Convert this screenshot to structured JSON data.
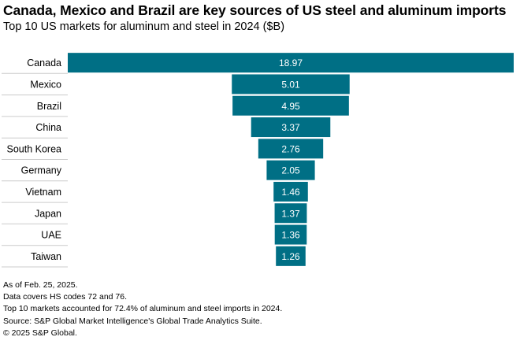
{
  "title": "Canada, Mexico and Brazil are key sources of US steel and aluminum imports",
  "subtitle": "Top 10 US markets for aluminum and steel in 2024 ($B)",
  "chart_data": {
    "type": "bar",
    "orientation": "horizontal-centered-funnel",
    "title": "Canada, Mexico and Brazil are key sources of US steel and aluminum imports",
    "subtitle": "Top 10 US markets for aluminum and steel in 2024 ($B)",
    "categories": [
      "Canada",
      "Mexico",
      "Brazil",
      "China",
      "South Korea",
      "Germany",
      "Vietnam",
      "Japan",
      "UAE",
      "Taiwan"
    ],
    "values": [
      18.97,
      5.01,
      4.95,
      3.37,
      2.76,
      2.05,
      1.46,
      1.37,
      1.36,
      1.26
    ],
    "value_labels": [
      "18.97",
      "5.01",
      "4.95",
      "3.37",
      "2.76",
      "2.05",
      "1.46",
      "1.37",
      "1.36",
      "1.26"
    ],
    "xlabel": "",
    "ylabel": "",
    "bar_color": "#006f85",
    "gridline_color": "#cccccc"
  },
  "footnotes": [
    "As of Feb. 25, 2025.",
    "Data covers HS codes 72 and 76.",
    "Top 10 markets accounted for 72.4% of aluminum and steel imports in 2024.",
    "Source: S&P Global Market Intelligence's Global Trade Analytics Suite.",
    "© 2025 S&P Global."
  ]
}
